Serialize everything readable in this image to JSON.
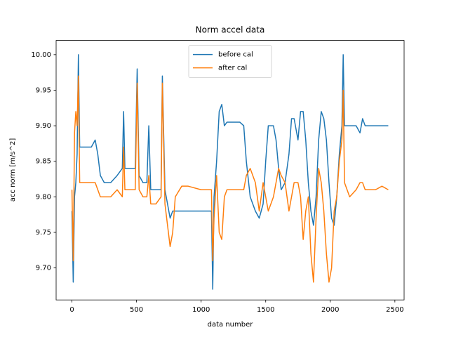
{
  "chart_data": {
    "type": "line",
    "title": "Norm accel data",
    "xlabel": "data number",
    "ylabel": "acc norm [m/s^2]",
    "x": [
      0,
      10,
      20,
      30,
      40,
      50,
      60,
      100,
      150,
      180,
      200,
      220,
      250,
      300,
      350,
      390,
      400,
      410,
      450,
      490,
      505,
      520,
      550,
      580,
      595,
      610,
      650,
      690,
      700,
      720,
      740,
      760,
      780,
      800,
      850,
      900,
      1000,
      1080,
      1090,
      1100,
      1120,
      1140,
      1160,
      1180,
      1200,
      1300,
      1330,
      1350,
      1380,
      1420,
      1450,
      1480,
      1500,
      1520,
      1560,
      1580,
      1600,
      1620,
      1650,
      1680,
      1700,
      1720,
      1750,
      1770,
      1790,
      1810,
      1830,
      1850,
      1870,
      1890,
      1910,
      1930,
      1950,
      1970,
      1990,
      2010,
      2030,
      2050,
      2070,
      2090,
      2100,
      2110,
      2150,
      2200,
      2230,
      2250,
      2270,
      2300,
      2350,
      2400,
      2449
    ],
    "series": [
      {
        "name": "before cal",
        "color": "#1f77b4",
        "values": [
          9.78,
          9.68,
          9.8,
          9.82,
          9.86,
          10.0,
          9.87,
          9.87,
          9.87,
          9.88,
          9.86,
          9.83,
          9.82,
          9.82,
          9.83,
          9.84,
          9.92,
          9.84,
          9.84,
          9.84,
          9.98,
          9.83,
          9.82,
          9.82,
          9.9,
          9.81,
          9.81,
          9.81,
          9.97,
          9.81,
          9.79,
          9.77,
          9.78,
          9.78,
          9.78,
          9.78,
          9.78,
          9.78,
          9.67,
          9.8,
          9.85,
          9.92,
          9.93,
          9.9,
          9.905,
          9.905,
          9.9,
          9.85,
          9.8,
          9.78,
          9.77,
          9.79,
          9.85,
          9.9,
          9.9,
          9.88,
          9.84,
          9.81,
          9.82,
          9.86,
          9.91,
          9.91,
          9.88,
          9.92,
          9.92,
          9.88,
          9.82,
          9.78,
          9.76,
          9.8,
          9.88,
          9.92,
          9.91,
          9.88,
          9.82,
          9.77,
          9.76,
          9.8,
          9.86,
          9.9,
          10.0,
          9.9,
          9.9,
          9.9,
          9.89,
          9.91,
          9.9,
          9.9,
          9.9,
          9.9,
          9.9
        ]
      },
      {
        "name": "after cal",
        "color": "#ff7f0e",
        "values": [
          9.81,
          9.71,
          9.89,
          9.92,
          9.9,
          9.97,
          9.82,
          9.82,
          9.82,
          9.82,
          9.81,
          9.8,
          9.8,
          9.8,
          9.81,
          9.8,
          9.87,
          9.81,
          9.81,
          9.81,
          9.96,
          9.81,
          9.8,
          9.8,
          9.83,
          9.79,
          9.79,
          9.8,
          9.96,
          9.79,
          9.76,
          9.73,
          9.75,
          9.8,
          9.815,
          9.815,
          9.81,
          9.81,
          9.71,
          9.77,
          9.83,
          9.75,
          9.74,
          9.8,
          9.81,
          9.81,
          9.81,
          9.83,
          9.84,
          9.82,
          9.78,
          9.82,
          9.8,
          9.78,
          9.8,
          9.82,
          9.84,
          9.83,
          9.82,
          9.78,
          9.8,
          9.82,
          9.82,
          9.8,
          9.74,
          9.78,
          9.8,
          9.72,
          9.68,
          9.77,
          9.84,
          9.82,
          9.78,
          9.72,
          9.68,
          9.7,
          9.78,
          9.8,
          9.85,
          9.88,
          9.95,
          9.82,
          9.8,
          9.81,
          9.82,
          9.82,
          9.81,
          9.81,
          9.81,
          9.815,
          9.81
        ]
      }
    ],
    "xlim": [
      -122.45,
      2571.45
    ],
    "xticks": [
      0,
      500,
      1000,
      1500,
      2000,
      2500
    ],
    "ylim": [
      9.655,
      10.02
    ],
    "yticks": [
      {
        "value": 9.7,
        "label": "9.70"
      },
      {
        "value": 9.75,
        "label": "9.75"
      },
      {
        "value": 9.8,
        "label": "9.80"
      },
      {
        "value": 9.85,
        "label": "9.85"
      },
      {
        "value": 9.9,
        "label": "9.90"
      },
      {
        "value": 9.95,
        "label": "9.95"
      },
      {
        "value": 10.0,
        "label": "10.00"
      }
    ],
    "legend": "upper center",
    "grid": false
  }
}
